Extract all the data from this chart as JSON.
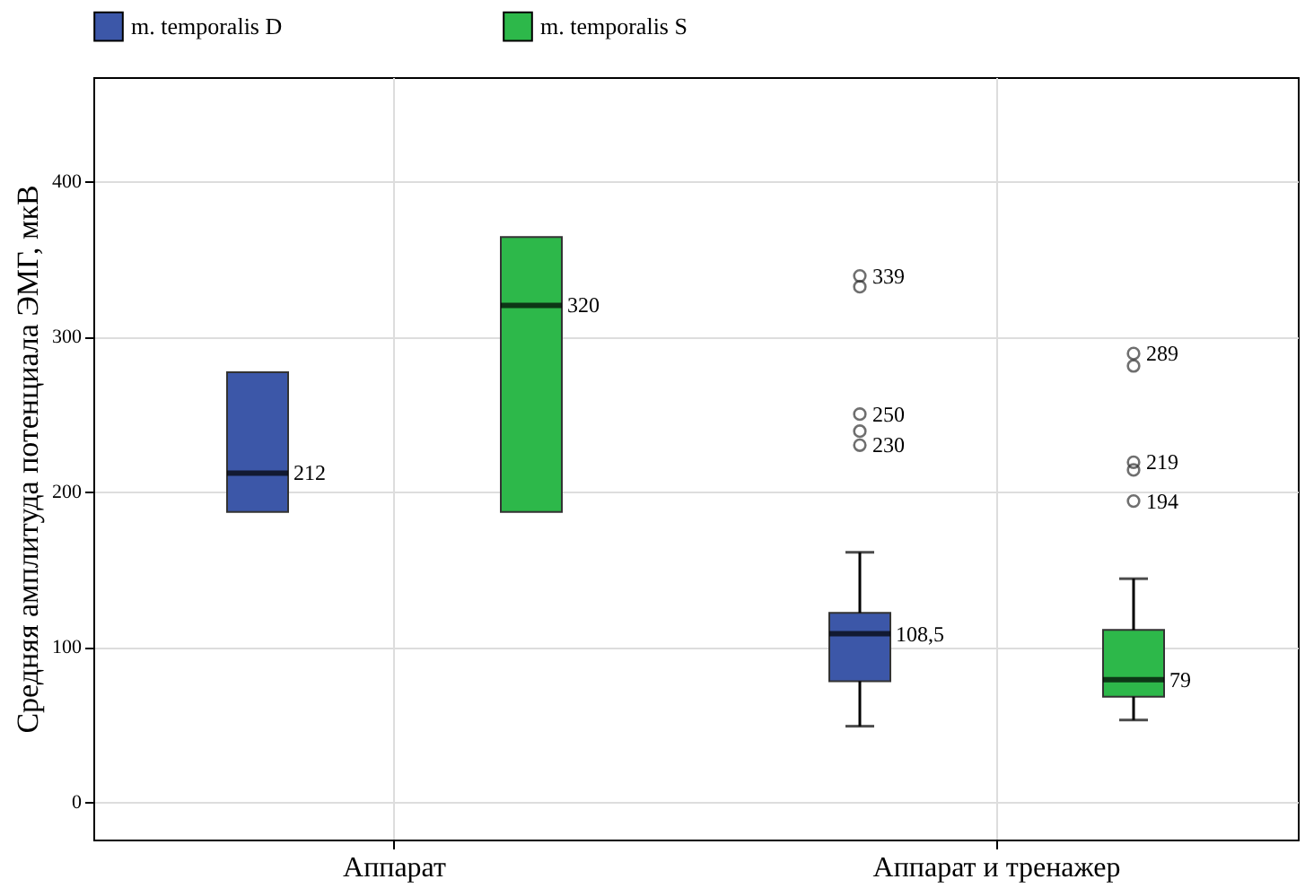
{
  "chart_data": {
    "type": "box",
    "ylabel": "Средняя амплитуда потенциала ЭМГ, мкВ",
    "categories": [
      "Аппарат",
      "Аппарат и тренажер"
    ],
    "series": [
      {
        "name": "m. temporalis D",
        "color": "#3c57a8",
        "boxes": [
          {
            "low": 187,
            "q1": 187,
            "median": 212,
            "q3": 277,
            "high": 277
          },
          {
            "low": 49,
            "q1": 78,
            "median": 108.5,
            "q3": 122,
            "high": 161,
            "outliers": [
              230,
              239,
              250,
              332,
              339
            ]
          }
        ]
      },
      {
        "name": "m. temporalis S",
        "color": "#2db84a",
        "boxes": [
          {
            "low": 187,
            "q1": 187,
            "median": 320,
            "q3": 364,
            "high": 364
          },
          {
            "low": 53,
            "q1": 68,
            "median": 79,
            "q3": 111,
            "high": 144,
            "outliers": [
              194,
              214,
              219,
              281,
              289
            ]
          }
        ]
      }
    ],
    "annotations": [
      "212",
      "320",
      "108,5",
      "79",
      "339",
      "250",
      "230",
      "289",
      "219",
      "194"
    ],
    "ylim": [
      -24,
      467
    ],
    "yticks": [
      0,
      100,
      200,
      300,
      400
    ],
    "grid": true,
    "legend": "top"
  }
}
